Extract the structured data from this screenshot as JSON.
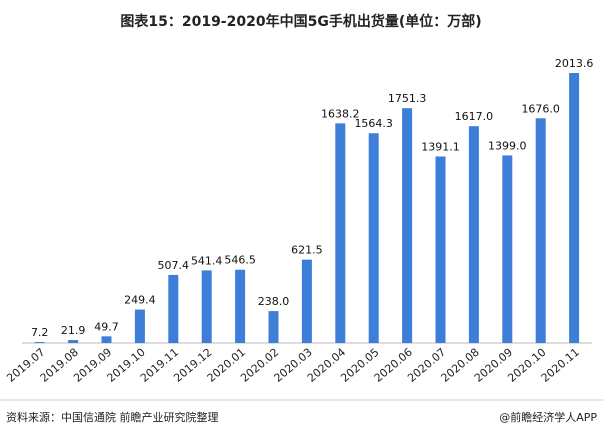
{
  "chart_data": {
    "type": "bar",
    "title": "图表15：2019-2020年中国5G手机出货量(单位：万部)",
    "categories": [
      "2019.07",
      "2019.08",
      "2019.09",
      "2019.10",
      "2019.11",
      "2019.12",
      "2020.01",
      "2020.02",
      "2020.03",
      "2020.04",
      "2020.05",
      "2020.06",
      "2020.07",
      "2020.08",
      "2020.09",
      "2020.10",
      "2020.11"
    ],
    "values": [
      7.2,
      21.9,
      49.7,
      249.4,
      507.4,
      541.4,
      546.5,
      238.0,
      621.5,
      1638.2,
      1564.3,
      1751.3,
      1391.1,
      1617.0,
      1399.0,
      1676.0,
      2013.6
    ],
    "value_labels": [
      "7.2",
      "21.9",
      "49.7",
      "249.4",
      "507.4",
      "541.4",
      "546.5",
      "238.0",
      "621.5",
      "1638.2",
      "1564.3",
      "1751.3",
      "1391.1",
      "1617.0",
      "1399.0",
      "1676.0",
      "2013.6"
    ],
    "color": "#3d7fd8",
    "source": "资料来源：中国信通院 前瞻产业研究院整理",
    "credit": "@前瞻经济学人APP"
  }
}
